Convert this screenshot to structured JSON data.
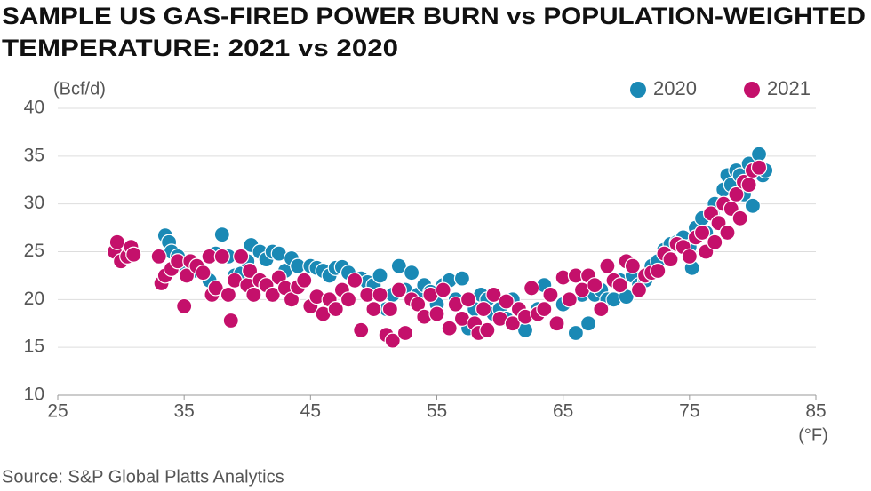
{
  "chart_data": {
    "type": "scatter",
    "title": [
      "SAMPLE US GAS-FIRED POWER BURN vs POPULATION-WEIGHTED",
      "TEMPERATURE: 2021 vs 2020"
    ],
    "y_label": "(Bcf/d)",
    "x_label": "(°F)",
    "source": "Source: S&P Global Platts Analytics",
    "xlim": [
      25,
      85
    ],
    "xticks": [
      25,
      35,
      45,
      55,
      65,
      75,
      85
    ],
    "ylim": [
      10,
      40
    ],
    "yticks": [
      10,
      15,
      20,
      25,
      30,
      35,
      40
    ],
    "grid": true,
    "legend": "top-right",
    "series": [
      {
        "name": "2020",
        "color": "#1a89b5",
        "x": [
          33.5,
          33.8,
          34,
          34.5,
          35,
          36,
          37,
          37.5,
          38,
          38.5,
          39,
          39.5,
          40,
          40.3,
          41,
          41.5,
          42,
          42.5,
          43,
          43.5,
          44,
          44.5,
          45,
          45.5,
          46,
          46.5,
          47,
          47.5,
          48,
          48.5,
          49,
          49.5,
          50,
          50.5,
          51,
          51.5,
          52,
          52.5,
          53,
          53.5,
          54,
          54.5,
          55,
          55.5,
          56,
          56.5,
          57,
          57.5,
          58,
          58.5,
          59,
          59.5,
          60,
          60.5,
          61,
          62,
          63,
          63.5,
          64,
          65,
          66,
          66.5,
          67,
          67.5,
          68,
          68.5,
          69,
          69.5,
          70,
          70.5,
          71,
          71.5,
          72,
          72.5,
          73,
          73.5,
          74,
          74.5,
          75,
          75.2,
          75.5,
          76,
          76.3,
          76.8,
          77,
          77.3,
          77.7,
          78,
          78.3,
          78.7,
          79,
          79.3,
          79.7,
          80,
          80.5,
          80.8,
          81
        ],
        "y": [
          26.7,
          26,
          25,
          24.5,
          23.5,
          23,
          22,
          24.8,
          26.8,
          24.5,
          22.5,
          22.7,
          24,
          25.7,
          25,
          24.2,
          25,
          24.8,
          23,
          24.3,
          23.5,
          22,
          23.5,
          23.3,
          23,
          22.5,
          23.3,
          23.4,
          22.8,
          22,
          22.2,
          21.8,
          21.5,
          22.5,
          19,
          20.5,
          23.5,
          21,
          22.8,
          20.5,
          21.5,
          20.8,
          19.5,
          21.5,
          22,
          20,
          22.2,
          17,
          19,
          20.5,
          20,
          18.5,
          19,
          18,
          20,
          16.8,
          19,
          21.5,
          20.5,
          19.5,
          16.5,
          20.5,
          17.5,
          20.5,
          21,
          20,
          20,
          22,
          20.3,
          22.5,
          21.5,
          22,
          23.5,
          24,
          25.2,
          25.8,
          26,
          26.5,
          25.5,
          23.3,
          27.5,
          28.5,
          27,
          29,
          30,
          28,
          31.5,
          33,
          32,
          33.5,
          33,
          31,
          34.2,
          29.8,
          35.2,
          33,
          33.5
        ]
      },
      {
        "name": "2021",
        "color": "#c4106b",
        "x": [
          29.5,
          29.7,
          30,
          30.5,
          30.8,
          31,
          33,
          33.2,
          33.5,
          34,
          34.5,
          35,
          35.2,
          35.5,
          36,
          36.5,
          37,
          37.2,
          37.5,
          38,
          38.5,
          38.7,
          39,
          39.5,
          40,
          40.2,
          40.5,
          41,
          41.5,
          42,
          42.5,
          43,
          43.5,
          44,
          44.5,
          45,
          45.5,
          46,
          46.5,
          47,
          47.5,
          48,
          48.5,
          49,
          49.5,
          50,
          50.5,
          51,
          51.3,
          51.5,
          52,
          52.5,
          53,
          53.5,
          54,
          54.5,
          55,
          55.5,
          56,
          56.5,
          57,
          57.5,
          58,
          58.3,
          58.7,
          59,
          59.5,
          60,
          60.5,
          61,
          61.5,
          62,
          62.5,
          63,
          63.5,
          64,
          64.5,
          65,
          65.5,
          66,
          66.5,
          67,
          67.5,
          68,
          68.5,
          69,
          69.5,
          70,
          70.5,
          71,
          71.5,
          72,
          72.5,
          73,
          73.5,
          74,
          74.5,
          75,
          75.5,
          76,
          76.3,
          76.7,
          77,
          77.3,
          77.7,
          78,
          78.3,
          78.7,
          79,
          79.3,
          79.7,
          80,
          80.5
        ],
        "y": [
          25,
          26,
          24,
          24.5,
          25.5,
          24.7,
          24.5,
          21.7,
          22.5,
          23.2,
          24,
          19.3,
          22.5,
          24,
          23.5,
          22.8,
          24.5,
          20.5,
          21.2,
          24.5,
          20.5,
          17.8,
          22,
          24.5,
          21.5,
          23,
          20.5,
          22,
          21.5,
          20.5,
          22.3,
          21.2,
          20,
          21.3,
          22,
          19.3,
          20.3,
          18.5,
          20,
          19,
          21,
          20,
          22,
          16.8,
          20.5,
          19,
          20.5,
          16.3,
          19,
          15.7,
          21,
          16.5,
          20,
          19.5,
          18.2,
          20.5,
          18.5,
          21,
          17,
          19.5,
          18,
          20,
          17.5,
          16.5,
          19,
          16.8,
          20.5,
          18,
          19.8,
          17.5,
          19,
          18.2,
          21.2,
          18.5,
          19,
          20.5,
          17.5,
          22.3,
          20,
          22.5,
          21,
          22.5,
          21.5,
          19,
          23.5,
          22,
          21.5,
          24,
          23.5,
          21,
          22.5,
          22.8,
          23,
          24.8,
          24.2,
          25.8,
          25.5,
          24.5,
          26.5,
          27,
          25,
          29,
          26,
          28,
          30,
          27,
          29.5,
          31,
          28.5,
          32.3,
          32,
          33.5,
          33.8
        ]
      }
    ]
  }
}
